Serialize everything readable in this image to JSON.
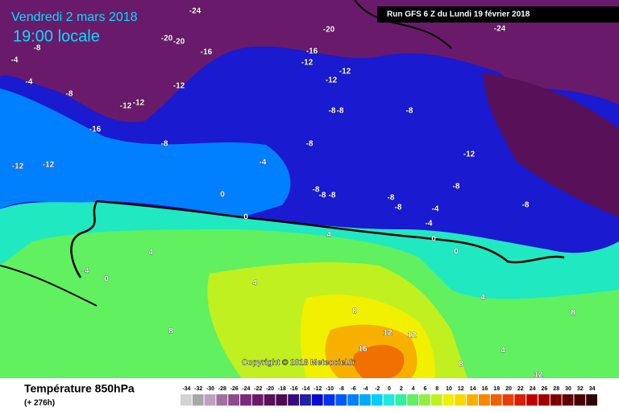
{
  "header": {
    "date": "Vendredi 2 mars 2018",
    "time": "19:00 locale",
    "run": "Run GFS 6 Z du Lundi 19 février 2018"
  },
  "footer": {
    "title": "Température 850hPa",
    "lead": "(+ 276h)",
    "copyright": "Copyright © 2018 Meteociel.fr"
  },
  "legend": {
    "values": [
      -34,
      -32,
      -30,
      -28,
      -26,
      -24,
      -22,
      -20,
      -18,
      -16,
      -14,
      -12,
      -10,
      -8,
      -6,
      -4,
      -2,
      0,
      2,
      4,
      6,
      8,
      10,
      12,
      14,
      16,
      18,
      20,
      22,
      24,
      26,
      28,
      30,
      32,
      34
    ],
    "colors": [
      "#d2d2d2",
      "#a8a8a8",
      "#c0a0c0",
      "#a070a0",
      "#8c4c8c",
      "#7a2a7a",
      "#6a1a6a",
      "#581058",
      "#4a0a50",
      "#3c0a78",
      "#2020a8",
      "#0a0ad0",
      "#0030f0",
      "#0058ff",
      "#0080ff",
      "#00a8ff",
      "#00d0ff",
      "#20e8e0",
      "#30f0a0",
      "#60f060",
      "#90f040",
      "#c0f020",
      "#f0f000",
      "#f8d800",
      "#f8b000",
      "#f88800",
      "#f06000",
      "#e84000",
      "#d82000",
      "#c00000",
      "#a00000",
      "#800000",
      "#600000",
      "#480000",
      "#300000"
    ]
  },
  "contour_labels": [
    -24,
    -20,
    -20,
    -8,
    -4,
    -4,
    -16,
    -20,
    -24,
    -16,
    -12,
    -12,
    -12,
    -12,
    -8,
    -12,
    -12,
    -16,
    -8,
    -8,
    -8,
    -8,
    -8,
    -12,
    -12,
    -12,
    -4,
    -8,
    0,
    -8,
    -8,
    -8,
    -8,
    -8,
    -4,
    -8,
    -4,
    0,
    4,
    0,
    0,
    4,
    -4,
    0,
    4,
    4,
    8,
    8,
    8,
    12,
    12,
    16,
    4,
    12,
    8
  ]
}
